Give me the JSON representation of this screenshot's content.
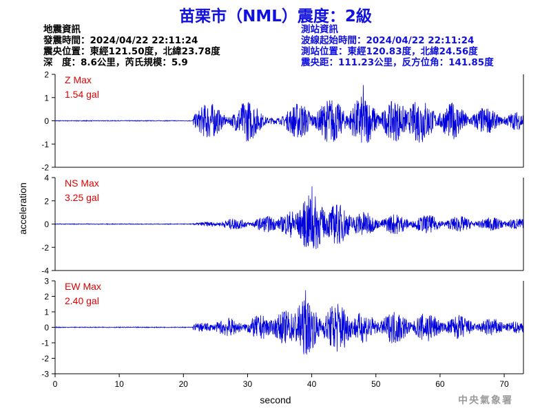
{
  "title": "苗栗市（NML）震度：2級",
  "earthquake_info": {
    "heading": "地震資訊",
    "lines": [
      "發震時間：2024/04/22 22:11:24",
      "震央位置：東經121.50度，北緯23.78度",
      "深　度：8.6公里，芮氏規模：5.9"
    ]
  },
  "station_info": {
    "heading": "測站資訊",
    "lines": [
      "波線起始時間：2024/04/22 22:11:24",
      "測站位置：東經120.83度，北緯24.56度",
      "震央距：111.23公里，反方位角：141.85度"
    ]
  },
  "agency": "中央氣象署",
  "colors": {
    "trace": "#0000dd",
    "label": "#e00000",
    "title": "#1010e0"
  },
  "chart_data": {
    "type": "line",
    "xlabel": "second",
    "ylabel": "acceleration",
    "xlim": [
      0,
      73
    ],
    "xticks": [
      0,
      10,
      20,
      30,
      40,
      50,
      60,
      70
    ],
    "panels": [
      {
        "name": "Z",
        "label": "Z Max",
        "value": "1.54 gal",
        "peak": 1.54,
        "ylim": [
          -2,
          2
        ],
        "yticks": [
          2,
          1,
          0,
          -1,
          -2
        ],
        "bursts": [
          [
            24,
            0.8
          ],
          [
            30,
            0.9
          ],
          [
            38,
            0.8
          ],
          [
            43,
            1.0
          ],
          [
            48,
            1.1
          ],
          [
            53,
            0.9
          ],
          [
            57,
            1.0
          ],
          [
            62,
            0.8
          ],
          [
            67,
            0.6
          ],
          [
            72,
            0.4
          ]
        ]
      },
      {
        "name": "NS",
        "label": "NS Max",
        "value": "3.25 gal",
        "peak": 3.25,
        "ylim": [
          -4,
          4
        ],
        "yticks": [
          4,
          2,
          0,
          -2,
          -4
        ],
        "bursts": [
          [
            24,
            0.2
          ],
          [
            28,
            0.5
          ],
          [
            33,
            0.7
          ],
          [
            37,
            1.2
          ],
          [
            40,
            2.6
          ],
          [
            44,
            1.8
          ],
          [
            48,
            1.1
          ],
          [
            53,
            0.9
          ],
          [
            58,
            0.8
          ],
          [
            63,
            0.7
          ],
          [
            68,
            0.6
          ],
          [
            72,
            0.5
          ]
        ]
      },
      {
        "name": "EW",
        "label": "EW Max",
        "value": "2.40 gal",
        "peak": 2.4,
        "ylim": [
          -3,
          3
        ],
        "yticks": [
          3,
          2,
          1,
          0,
          -1,
          -2,
          -3
        ],
        "bursts": [
          [
            23,
            0.3
          ],
          [
            27,
            0.6
          ],
          [
            32,
            0.8
          ],
          [
            36,
            1.1
          ],
          [
            39,
            1.8
          ],
          [
            44,
            1.7
          ],
          [
            48,
            1.0
          ],
          [
            53,
            1.1
          ],
          [
            58,
            1.0
          ],
          [
            63,
            0.8
          ],
          [
            68,
            0.6
          ],
          [
            72,
            0.4
          ]
        ]
      }
    ]
  }
}
